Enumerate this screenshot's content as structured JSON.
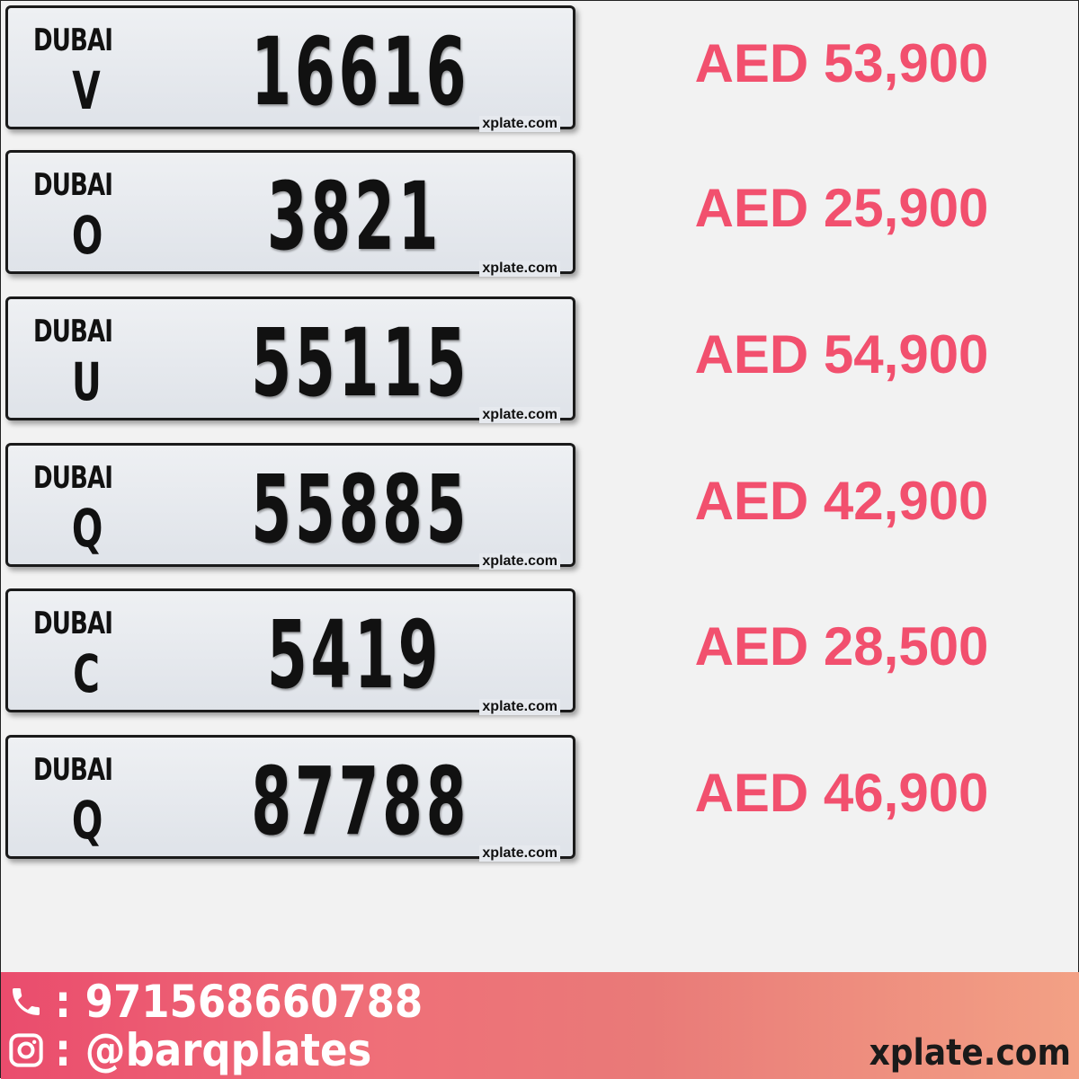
{
  "listings": [
    {
      "emirate": "DUBAI",
      "code": "V",
      "number": "16616",
      "watermark": "xplate.com",
      "price": "AED 53,900"
    },
    {
      "emirate": "DUBAI",
      "code": "O",
      "number": "3821",
      "watermark": "xplate.com",
      "price": "AED 25,900"
    },
    {
      "emirate": "DUBAI",
      "code": "U",
      "number": "55115",
      "watermark": "xplate.com",
      "price": "AED 54,900"
    },
    {
      "emirate": "DUBAI",
      "code": "Q",
      "number": "55885",
      "watermark": "xplate.com",
      "price": "AED 42,900"
    },
    {
      "emirate": "DUBAI",
      "code": "C",
      "number": "5419",
      "watermark": "xplate.com",
      "price": "AED 28,500"
    },
    {
      "emirate": "DUBAI",
      "code": "Q",
      "number": "87788",
      "watermark": "xplate.com",
      "price": "AED 46,900"
    }
  ],
  "footer": {
    "phone": ": 971568660788",
    "instagram": ": @barqplates",
    "brand": "xplate.com",
    "phone_icon": "phone-icon",
    "instagram_icon": "instagram-icon"
  },
  "colors": {
    "price": "#f2506e",
    "footer_start": "#ea4c6d",
    "footer_end": "#f3a185"
  }
}
